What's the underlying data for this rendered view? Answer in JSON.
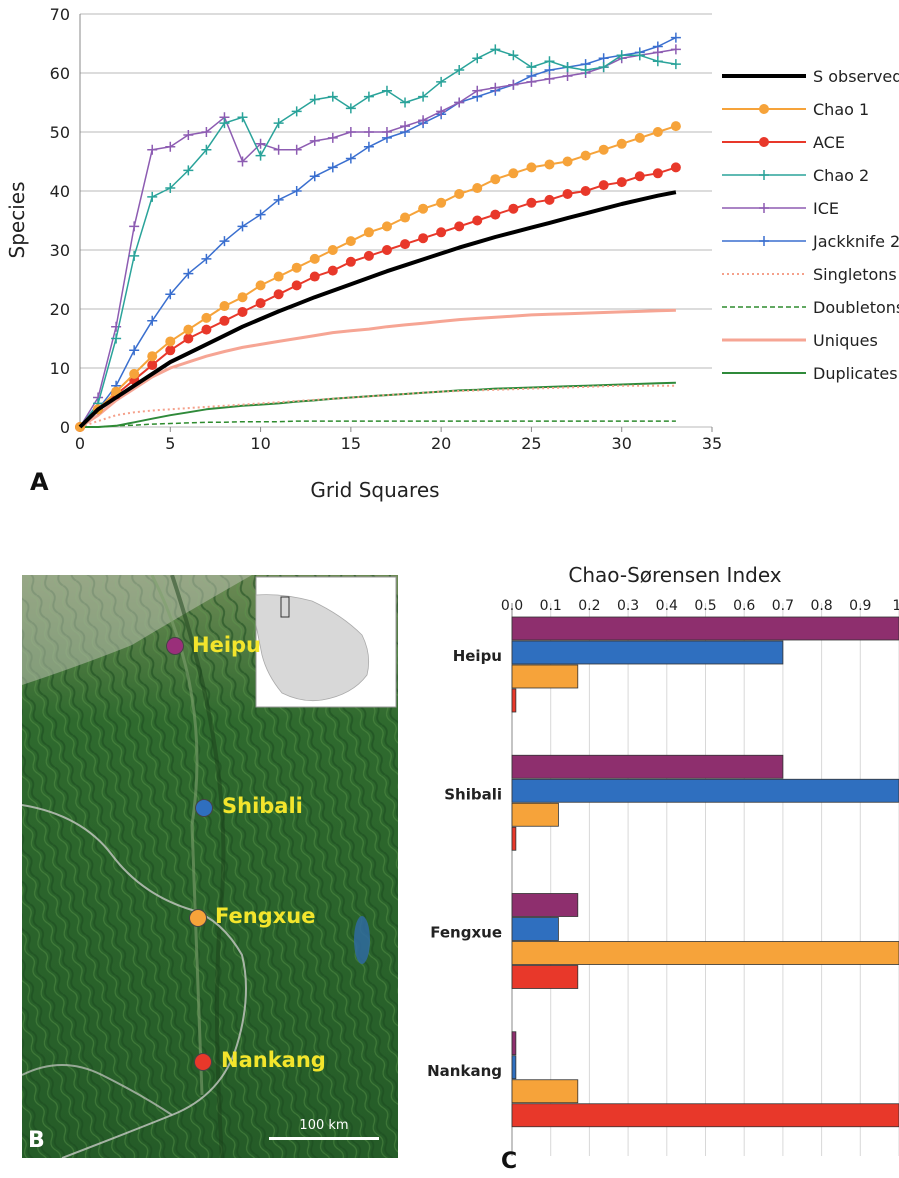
{
  "chart_data": [
    {
      "type": "line",
      "panel_label": "A",
      "xlabel": "Grid Squares",
      "ylabel": "Species",
      "xlim": [
        0,
        35
      ],
      "ylim": [
        0,
        70
      ],
      "xticks": [
        0,
        5,
        10,
        15,
        20,
        25,
        30,
        35
      ],
      "yticks": [
        0,
        10,
        20,
        30,
        40,
        50,
        60,
        70
      ],
      "grid": "horizontal",
      "legend_position": "right",
      "x": [
        0,
        1,
        2,
        3,
        4,
        5,
        6,
        7,
        8,
        9,
        10,
        11,
        12,
        13,
        14,
        15,
        16,
        17,
        18,
        19,
        20,
        21,
        22,
        23,
        24,
        25,
        26,
        27,
        28,
        29,
        30,
        31,
        32,
        33
      ],
      "series": [
        {
          "name": "S observed",
          "color": "#000000",
          "marker": "none",
          "dash": "solid",
          "width": 4,
          "values": [
            0,
            3,
            5,
            7,
            9,
            11,
            12.5,
            14,
            15.5,
            17,
            18.3,
            19.6,
            20.8,
            22,
            23.1,
            24.2,
            25.3,
            26.4,
            27.4,
            28.4,
            29.4,
            30.4,
            31.3,
            32.2,
            33,
            33.8,
            34.6,
            35.4,
            36.2,
            37,
            37.8,
            38.5,
            39.2,
            39.8
          ]
        },
        {
          "name": "Chao 1",
          "color": "#f6a33a",
          "marker": "dot",
          "dash": "solid",
          "width": 2,
          "values": [
            0,
            3,
            6,
            9,
            12,
            14.5,
            16.5,
            18.5,
            20.5,
            22,
            24,
            25.5,
            27,
            28.5,
            30,
            31.5,
            33,
            34,
            35.5,
            37,
            38,
            39.5,
            40.5,
            42,
            43,
            44,
            44.5,
            45,
            46,
            47,
            48,
            49,
            50,
            51
          ]
        },
        {
          "name": "ACE",
          "color": "#e8382a",
          "marker": "dot",
          "dash": "solid",
          "width": 2,
          "values": [
            0,
            3,
            5.5,
            8,
            10.5,
            13,
            15,
            16.5,
            18,
            19.5,
            21,
            22.5,
            24,
            25.5,
            26.5,
            28,
            29,
            30,
            31,
            32,
            33,
            34,
            35,
            36,
            37,
            38,
            38.5,
            39.5,
            40,
            41,
            41.5,
            42.5,
            43,
            44
          ]
        },
        {
          "name": "Chao 2",
          "color": "#2aa39a",
          "marker": "plus",
          "dash": "solid",
          "width": 1.5,
          "values": [
            0,
            4,
            15,
            29,
            39,
            40.5,
            43.5,
            47,
            51.5,
            52.5,
            46,
            51.5,
            53.5,
            55.5,
            56,
            54,
            56,
            57,
            55,
            56,
            58.5,
            60.5,
            62.5,
            64,
            63,
            61,
            62,
            61,
            60.5,
            61,
            63,
            63,
            62,
            61.5
          ]
        },
        {
          "name": "ICE",
          "color": "#8d5cb2",
          "marker": "plus",
          "dash": "solid",
          "width": 1.5,
          "values": [
            0,
            5,
            17,
            34,
            47,
            47.5,
            49.5,
            50,
            52.5,
            45,
            48,
            47,
            47,
            48.5,
            49,
            50,
            50,
            50,
            51,
            52,
            53.5,
            55,
            57,
            57.5,
            58,
            58.5,
            59,
            59.5,
            60,
            61,
            62.5,
            63,
            63.5,
            64
          ]
        },
        {
          "name": "Jackknife 2",
          "color": "#3a6fcf",
          "marker": "plus",
          "dash": "solid",
          "width": 1.5,
          "values": [
            0,
            3,
            7,
            13,
            18,
            22.5,
            26,
            28.5,
            31.5,
            34,
            36,
            38.5,
            40,
            42.5,
            44,
            45.5,
            47.5,
            49,
            50,
            51.5,
            53,
            55,
            56,
            57,
            58,
            59.5,
            60.5,
            61,
            61.5,
            62.5,
            63,
            63.5,
            64.5,
            66
          ]
        },
        {
          "name": "Singletons",
          "color": "#f5a08a",
          "marker": "none",
          "dash": "dotted",
          "width": 2,
          "values": [
            0,
            1,
            2,
            2.5,
            2.8,
            3,
            3.2,
            3.4,
            3.6,
            3.8,
            4,
            4.2,
            4.4,
            4.6,
            4.8,
            5,
            5.2,
            5.4,
            5.6,
            5.8,
            6,
            6.1,
            6.2,
            6.3,
            6.4,
            6.5,
            6.6,
            6.7,
            6.8,
            6.9,
            7,
            7,
            7,
            7
          ]
        },
        {
          "name": "Doubletons",
          "color": "#2e8b2e",
          "marker": "none",
          "dash": "dashed",
          "width": 1.5,
          "values": [
            0,
            0,
            0.2,
            0.3,
            0.5,
            0.6,
            0.7,
            0.8,
            0.8,
            0.9,
            0.9,
            0.9,
            1,
            1,
            1,
            1,
            1,
            1,
            1,
            1,
            1,
            1,
            1,
            1,
            1,
            1,
            1,
            1,
            1,
            1,
            1,
            1,
            1,
            1
          ]
        },
        {
          "name": "Uniques",
          "color": "#f6a594",
          "marker": "none",
          "dash": "solid",
          "width": 3,
          "values": [
            0,
            2,
            4.5,
            6.5,
            8.5,
            10,
            11,
            12,
            12.8,
            13.5,
            14,
            14.5,
            15,
            15.5,
            16,
            16.3,
            16.6,
            17,
            17.3,
            17.6,
            17.9,
            18.2,
            18.4,
            18.6,
            18.8,
            19,
            19.1,
            19.2,
            19.3,
            19.4,
            19.5,
            19.6,
            19.7,
            19.8
          ]
        },
        {
          "name": "Duplicates",
          "color": "#2f8a3a",
          "marker": "none",
          "dash": "solid",
          "width": 2,
          "values": [
            0,
            0,
            0.2,
            0.8,
            1.4,
            2,
            2.5,
            3,
            3.3,
            3.6,
            3.8,
            4,
            4.3,
            4.5,
            4.8,
            5,
            5.2,
            5.4,
            5.6,
            5.8,
            6,
            6.2,
            6.3,
            6.5,
            6.6,
            6.7,
            6.8,
            6.9,
            7,
            7.1,
            7.2,
            7.3,
            7.4,
            7.5
          ]
        }
      ]
    },
    {
      "type": "bar",
      "orientation": "horizontal",
      "panel_label": "C",
      "title": "Chao-Sørensen Index",
      "xlim": [
        0,
        1
      ],
      "xticks": [
        "0.0",
        "0.1",
        "0.2",
        "0.3",
        "0.4",
        "0.5",
        "0.6",
        "0.7",
        "0.8",
        "0.9",
        "1."
      ],
      "grid": "vertical",
      "categories": [
        "Heipu",
        "Shibali",
        "Fengxue",
        "Nankang"
      ],
      "series": [
        {
          "color": "#8e2f6e",
          "values": [
            1.0,
            0.7,
            0.17,
            0.01
          ]
        },
        {
          "color": "#2f6fbf",
          "values": [
            0.7,
            1.0,
            0.12,
            0.01
          ]
        },
        {
          "color": "#f6a33a",
          "values": [
            0.17,
            0.12,
            1.0,
            0.17
          ]
        },
        {
          "color": "#e8382a",
          "values": [
            0.01,
            0.01,
            0.17,
            1.0
          ]
        }
      ]
    }
  ],
  "map": {
    "panel_label": "B",
    "scale_label": "100 km",
    "sites": [
      {
        "name": "Heipu",
        "color": "#9a2f7a"
      },
      {
        "name": "Shibali",
        "color": "#2f6fbf"
      },
      {
        "name": "Fengxue",
        "color": "#f6a33a"
      },
      {
        "name": "Nankang",
        "color": "#e8382a"
      }
    ]
  }
}
